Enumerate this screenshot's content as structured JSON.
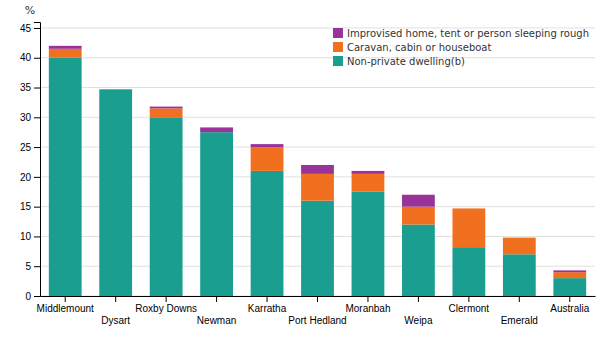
{
  "chart_data": {
    "type": "bar",
    "stacked": true,
    "categories": [
      "Middlemount",
      "Dysart",
      "Roxby Downs",
      "Newman",
      "Karratha",
      "Port Hedland",
      "Moranbah",
      "Weipa",
      "Clermont",
      "Emerald",
      "Australia"
    ],
    "series": [
      {
        "name": "Non-private dwelling(b)",
        "color": "#1a9e8f",
        "values": [
          40.0,
          34.7,
          30.0,
          27.5,
          21.0,
          16.0,
          17.5,
          12.0,
          8.2,
          7.0,
          3.0
        ]
      },
      {
        "name": "Caravan, cabin or houseboat",
        "color": "#F07020",
        "values": [
          1.5,
          0.0,
          1.5,
          0.0,
          4.0,
          4.5,
          3.0,
          3.0,
          6.5,
          2.8,
          1.0
        ]
      },
      {
        "name": "Improvised home, tent or person sleeping rough",
        "color": "#993399",
        "values": [
          0.5,
          0.0,
          0.3,
          0.8,
          0.5,
          1.5,
          0.5,
          2.0,
          0.0,
          0.0,
          0.3
        ]
      }
    ],
    "ylabel": "%",
    "ylim": [
      0,
      46
    ],
    "yticks": [
      0,
      5,
      10,
      15,
      20,
      25,
      30,
      35,
      40,
      45
    ],
    "grid": true,
    "legend": "upper-right"
  }
}
